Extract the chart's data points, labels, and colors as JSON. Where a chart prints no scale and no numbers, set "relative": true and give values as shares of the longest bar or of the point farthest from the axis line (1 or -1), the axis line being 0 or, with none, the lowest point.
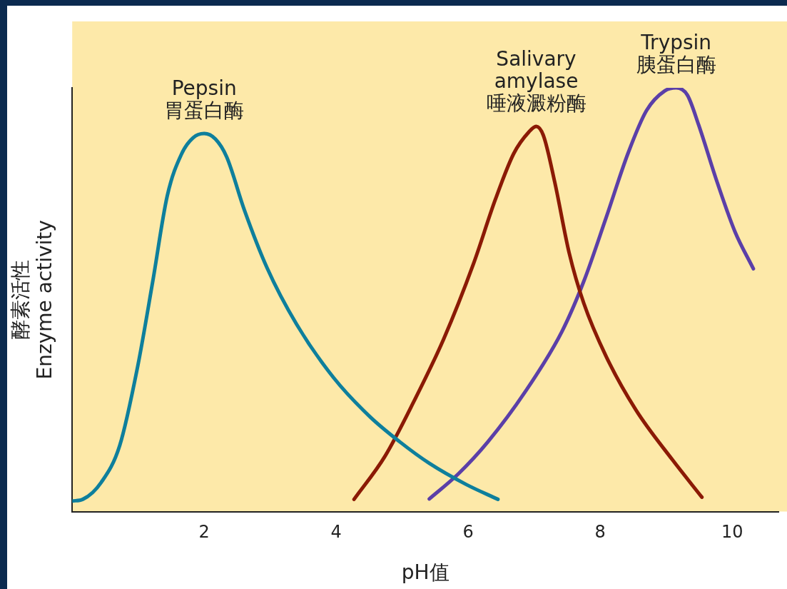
{
  "chart_data": {
    "type": "line",
    "relative": true,
    "xlabel": "pH值",
    "ylabel": "酵素活性\nEnzyme activity",
    "xlim": [
      0,
      10.7
    ],
    "xticks": [
      2,
      4,
      6,
      8,
      10
    ],
    "grid": false,
    "legend": false,
    "marker": "none",
    "line_style": "solid",
    "series": [
      {
        "name": "Pepsin\n胃蛋白酶",
        "color": "#0e7f9c",
        "x": [
          0,
          0.16,
          0.44,
          0.72,
          0.99,
          1.22,
          1.44,
          1.66,
          1.83,
          2.0,
          2.17,
          2.34,
          2.61,
          2.95,
          3.4,
          3.96,
          4.51,
          4.96,
          5.41,
          5.97,
          6.45
        ],
        "values": [
          0.025,
          0.029,
          0.069,
          0.156,
          0.341,
          0.543,
          0.745,
          0.845,
          0.882,
          0.892,
          0.879,
          0.837,
          0.711,
          0.576,
          0.442,
          0.316,
          0.224,
          0.165,
          0.114,
          0.064,
          0.029
        ]
      },
      {
        "name": "Salivary\namylase\n唾液澱粉酶",
        "color": "#8b1a05",
        "x": [
          4.27,
          4.74,
          5.18,
          5.63,
          6.08,
          6.41,
          6.69,
          6.92,
          7.03,
          7.14,
          7.31,
          7.53,
          7.75,
          8.09,
          8.54,
          9.09,
          9.54
        ],
        "values": [
          0.029,
          0.131,
          0.261,
          0.408,
          0.585,
          0.736,
          0.845,
          0.896,
          0.909,
          0.887,
          0.778,
          0.61,
          0.492,
          0.366,
          0.24,
          0.123,
          0.034
        ]
      },
      {
        "name": "Trypsin\n胰蛋白酶",
        "color": "#5b3fa8",
        "x": [
          5.41,
          5.85,
          6.3,
          6.86,
          7.42,
          7.75,
          8.09,
          8.42,
          8.7,
          8.98,
          9.15,
          9.32,
          9.49,
          9.77,
          10.04,
          10.32
        ],
        "values": [
          0.03,
          0.089,
          0.165,
          0.282,
          0.425,
          0.543,
          0.694,
          0.845,
          0.946,
          0.993,
          1.0,
          0.983,
          0.913,
          0.778,
          0.661,
          0.573
        ]
      }
    ]
  }
}
